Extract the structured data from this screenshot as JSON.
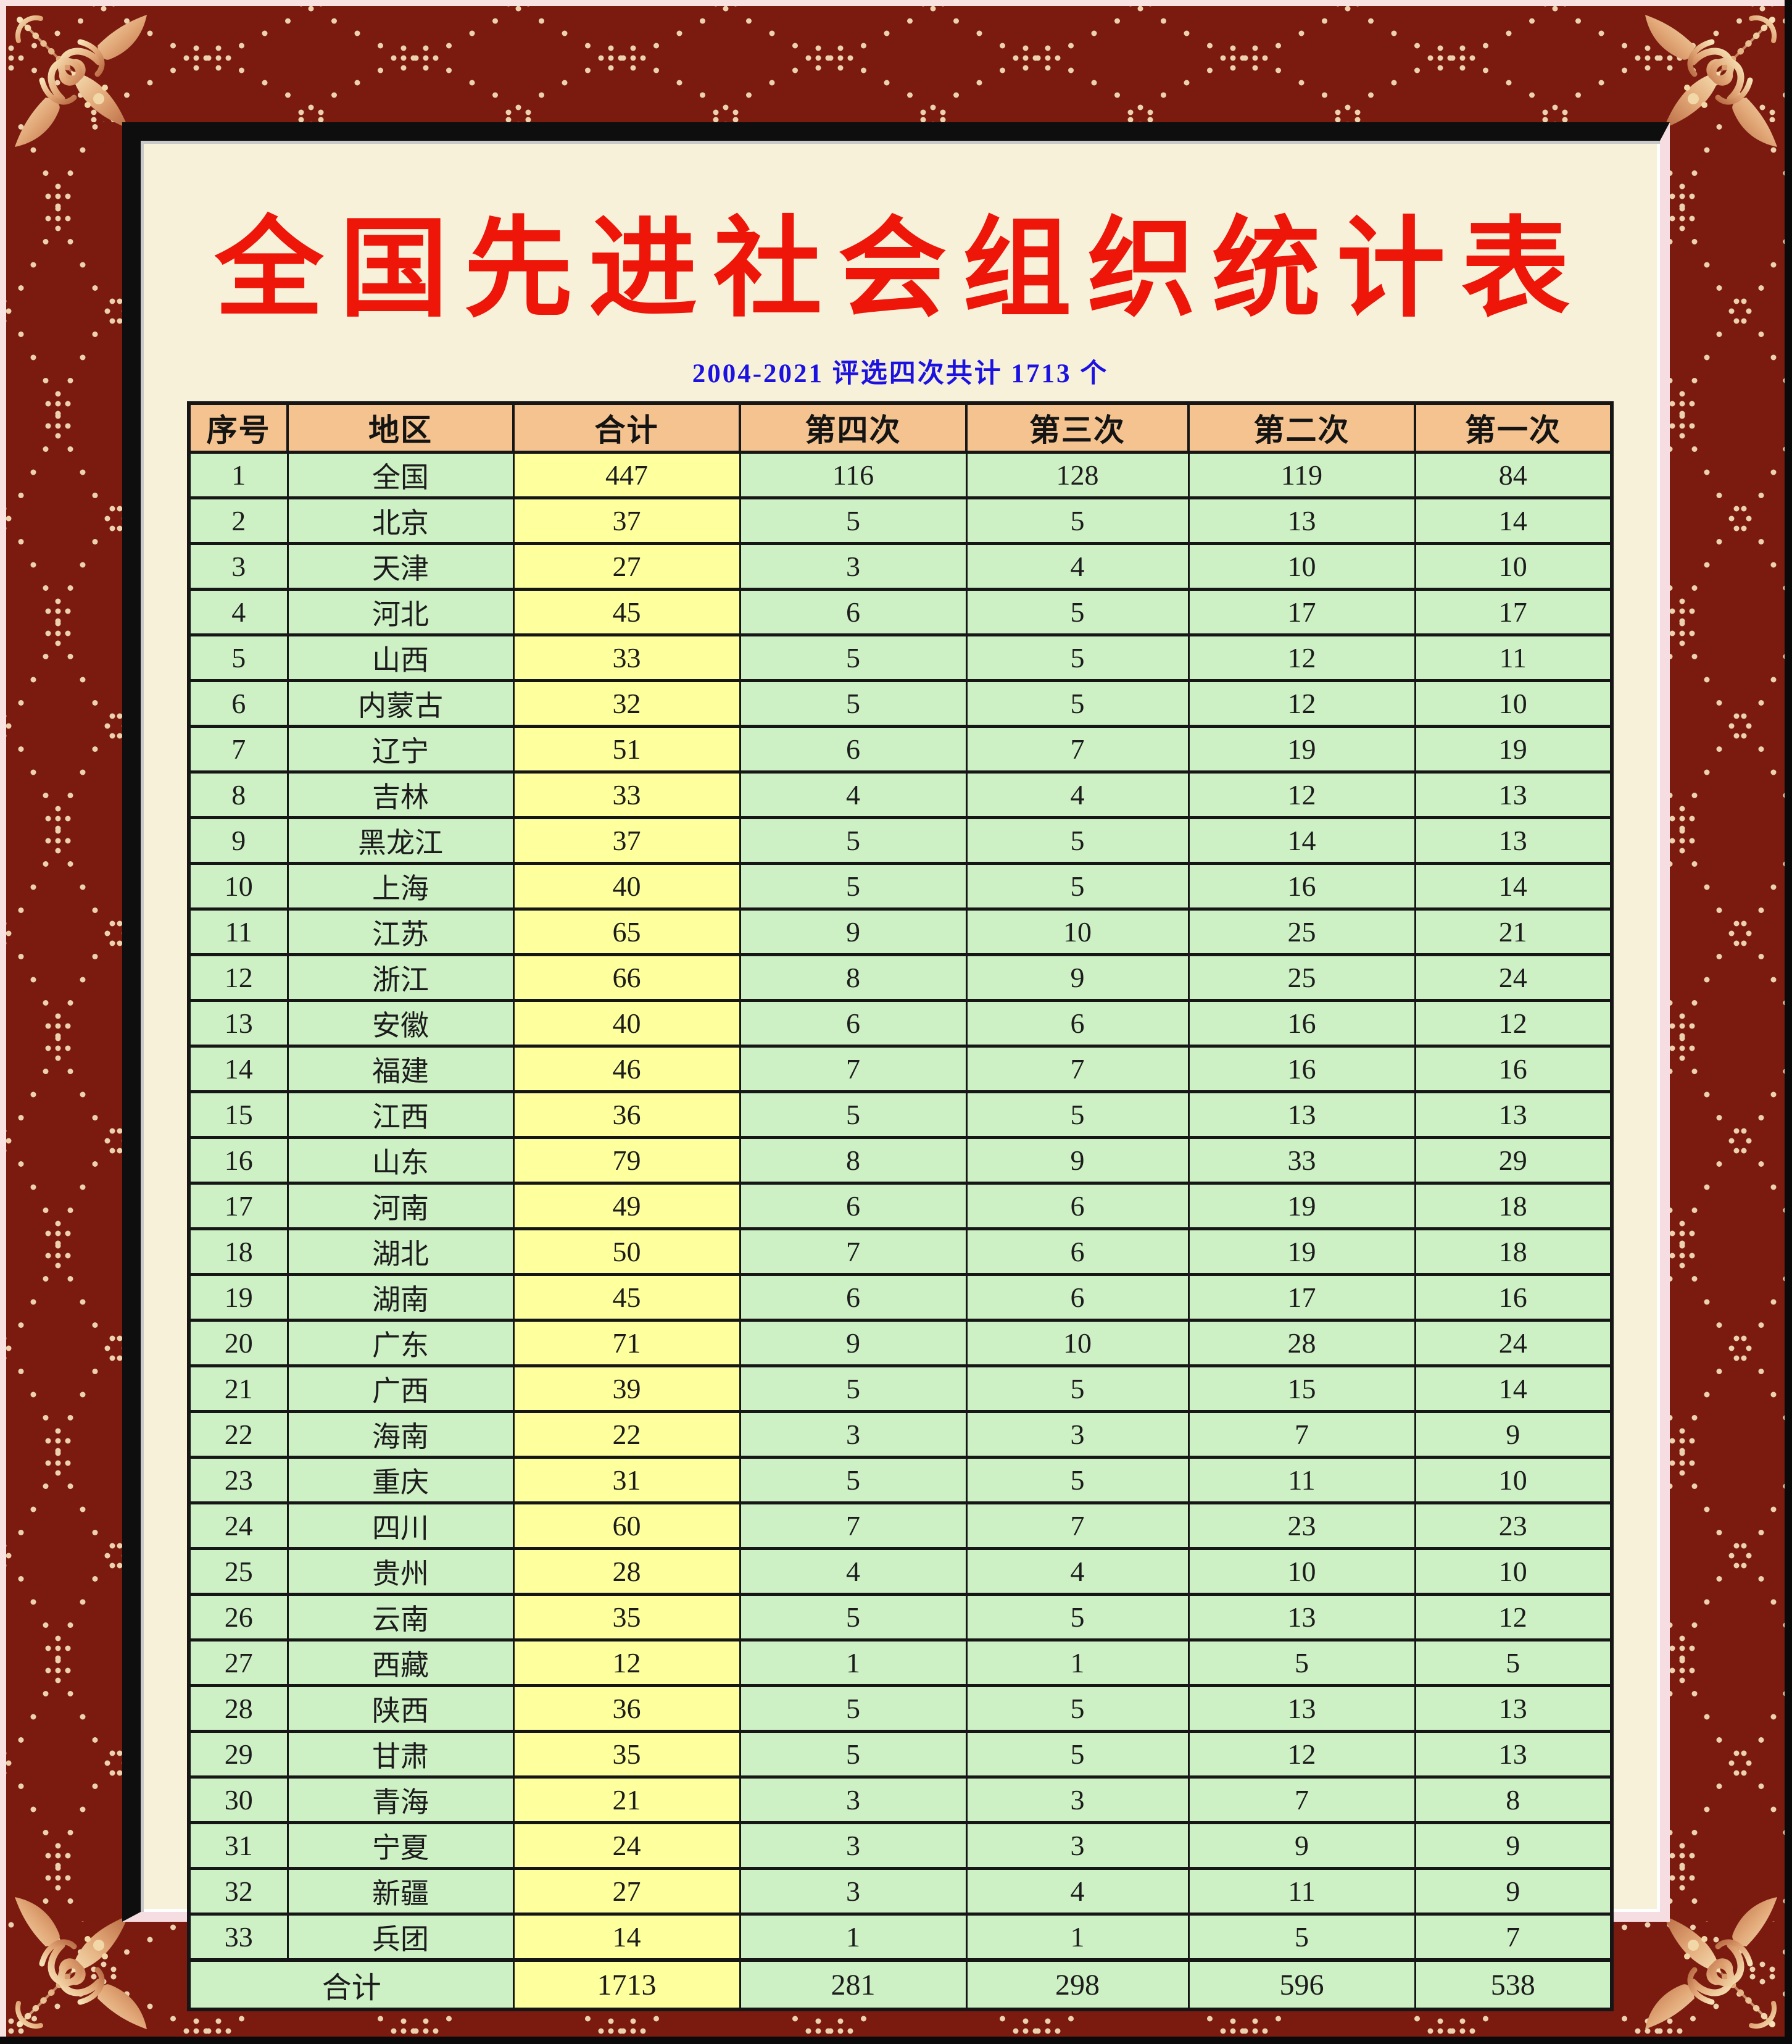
{
  "page": {
    "title": "全国先进社会组织统计表",
    "subtitle": "2004-2021 评选四次共计 1713 个"
  },
  "table": {
    "columns": [
      "序号",
      "地区",
      "合计",
      "第四次",
      "第三次",
      "第二次",
      "第一次"
    ],
    "rows": [
      [
        "1",
        "全国",
        447,
        116,
        128,
        119,
        84
      ],
      [
        "2",
        "北京",
        37,
        5,
        5,
        13,
        14
      ],
      [
        "3",
        "天津",
        27,
        3,
        4,
        10,
        10
      ],
      [
        "4",
        "河北",
        45,
        6,
        5,
        17,
        17
      ],
      [
        "5",
        "山西",
        33,
        5,
        5,
        12,
        11
      ],
      [
        "6",
        "内蒙古",
        32,
        5,
        5,
        12,
        10
      ],
      [
        "7",
        "辽宁",
        51,
        6,
        7,
        19,
        19
      ],
      [
        "8",
        "吉林",
        33,
        4,
        4,
        12,
        13
      ],
      [
        "9",
        "黑龙江",
        37,
        5,
        5,
        14,
        13
      ],
      [
        "10",
        "上海",
        40,
        5,
        5,
        16,
        14
      ],
      [
        "11",
        "江苏",
        65,
        9,
        10,
        25,
        21
      ],
      [
        "12",
        "浙江",
        66,
        8,
        9,
        25,
        24
      ],
      [
        "13",
        "安徽",
        40,
        6,
        6,
        16,
        12
      ],
      [
        "14",
        "福建",
        46,
        7,
        7,
        16,
        16
      ],
      [
        "15",
        "江西",
        36,
        5,
        5,
        13,
        13
      ],
      [
        "16",
        "山东",
        79,
        8,
        9,
        33,
        29
      ],
      [
        "17",
        "河南",
        49,
        6,
        6,
        19,
        18
      ],
      [
        "18",
        "湖北",
        50,
        7,
        6,
        19,
        18
      ],
      [
        "19",
        "湖南",
        45,
        6,
        6,
        17,
        16
      ],
      [
        "20",
        "广东",
        71,
        9,
        10,
        28,
        24
      ],
      [
        "21",
        "广西",
        39,
        5,
        5,
        15,
        14
      ],
      [
        "22",
        "海南",
        22,
        3,
        3,
        7,
        9
      ],
      [
        "23",
        "重庆",
        31,
        5,
        5,
        11,
        10
      ],
      [
        "24",
        "四川",
        60,
        7,
        7,
        23,
        23
      ],
      [
        "25",
        "贵州",
        28,
        4,
        4,
        10,
        10
      ],
      [
        "26",
        "云南",
        35,
        5,
        5,
        13,
        12
      ],
      [
        "27",
        "西藏",
        12,
        1,
        1,
        5,
        5
      ],
      [
        "28",
        "陕西",
        36,
        5,
        5,
        13,
        13
      ],
      [
        "29",
        "甘肃",
        35,
        5,
        5,
        12,
        13
      ],
      [
        "30",
        "青海",
        21,
        3,
        3,
        7,
        8
      ],
      [
        "31",
        "宁夏",
        24,
        3,
        3,
        9,
        9
      ],
      [
        "32",
        "新疆",
        27,
        3,
        4,
        11,
        9
      ],
      [
        "33",
        "兵团",
        14,
        1,
        1,
        5,
        7
      ]
    ],
    "footer": [
      "合计",
      1713,
      281,
      298,
      596,
      538
    ]
  },
  "colors": {
    "title_red": "#ee1509",
    "subtitle_blue": "#1b11e0",
    "header_bg": "#f5c38f",
    "row_bg": "#cdf0c5",
    "total_col_bg": "#feff9d",
    "paper": "#f8f1da",
    "frame_maroon": "#7b1b10",
    "frame_dot": "#ecd2ae",
    "ornament_gold": "#e2a878",
    "bevel_highlight": "#f8e2e2",
    "bevel_shadow": "#0a0a0a"
  }
}
